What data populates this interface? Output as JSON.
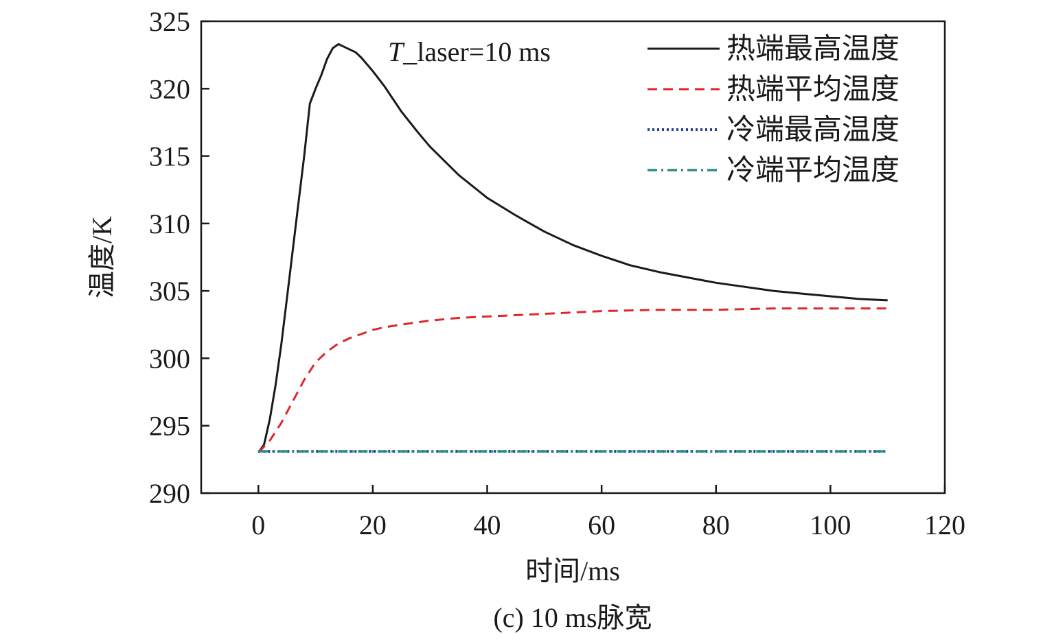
{
  "chart_data": {
    "type": "line",
    "xlabel": "时间/ms",
    "ylabel": "温度/K",
    "xlim": [
      -10,
      120
    ],
    "ylim": [
      290,
      325
    ],
    "xticks": [
      0,
      20,
      40,
      60,
      80,
      100,
      120
    ],
    "yticks": [
      290,
      295,
      300,
      305,
      310,
      315,
      320,
      325
    ],
    "grid": false,
    "legend_position": "top-right",
    "annotation": {
      "italic": "T",
      "text": "_laser=10 ms"
    },
    "caption": "(c) 10 ms脉宽",
    "series": [
      {
        "name": "热端最高温度",
        "color": "#1a1a1a",
        "dash": "solid",
        "x": [
          0,
          1,
          2,
          3,
          4,
          5,
          6,
          7,
          8,
          9,
          10,
          11,
          12,
          13,
          14,
          15,
          16,
          17,
          18,
          20,
          22,
          25,
          28,
          30,
          35,
          40,
          45,
          50,
          55,
          60,
          65,
          70,
          75,
          80,
          85,
          90,
          95,
          100,
          105,
          110
        ],
        "y": [
          293.0,
          293.6,
          295.5,
          298.0,
          301.0,
          304.5,
          308.0,
          311.5,
          315.0,
          318.9,
          320.0,
          321.0,
          322.2,
          323.0,
          323.3,
          323.1,
          322.9,
          322.7,
          322.3,
          321.3,
          320.2,
          318.3,
          316.7,
          315.7,
          313.6,
          311.9,
          310.6,
          309.4,
          308.4,
          307.6,
          306.9,
          306.4,
          306.0,
          305.6,
          305.3,
          305.0,
          304.8,
          304.6,
          304.4,
          304.3
        ]
      },
      {
        "name": "热端平均温度",
        "color": "#e0262c",
        "dash": "long-dash",
        "x": [
          0,
          2,
          4,
          6,
          8,
          10,
          12,
          14,
          16,
          18,
          20,
          22,
          25,
          30,
          35,
          40,
          45,
          50,
          55,
          60,
          70,
          80,
          90,
          100,
          110
        ],
        "y": [
          293.0,
          293.9,
          295.2,
          296.8,
          298.4,
          299.7,
          300.5,
          301.1,
          301.5,
          301.8,
          302.1,
          302.3,
          302.5,
          302.8,
          303.0,
          303.1,
          303.2,
          303.3,
          303.4,
          303.5,
          303.6,
          303.6,
          303.7,
          303.7,
          303.7
        ]
      },
      {
        "name": "冷端最高温度",
        "color": "#1f3f9a",
        "dash": "dotted",
        "x": [
          0,
          110
        ],
        "y": [
          293.1,
          293.1
        ]
      },
      {
        "name": "冷端平均温度",
        "color": "#2e8b8b",
        "dash": "dash-dot",
        "x": [
          0,
          110
        ],
        "y": [
          293.1,
          293.1
        ]
      }
    ]
  }
}
